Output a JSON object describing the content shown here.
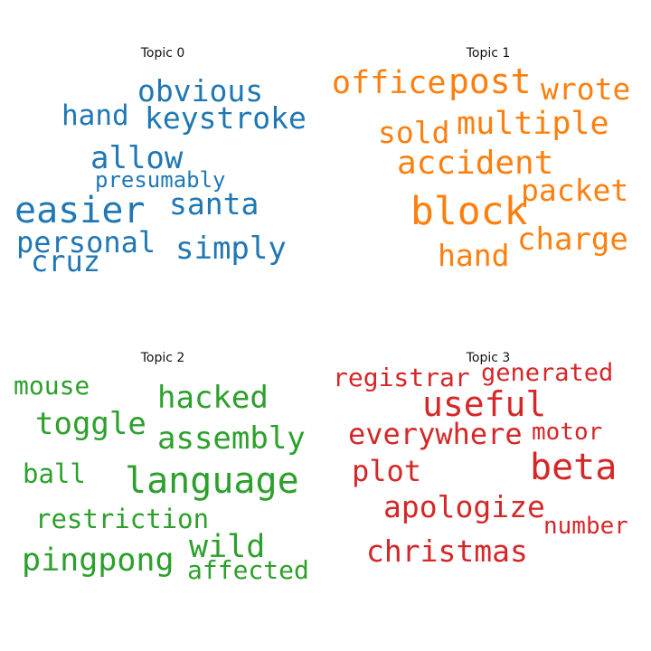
{
  "topics": [
    {
      "title": "Topic 0",
      "color": "#1f77b4",
      "words": [
        "obvious",
        "hand",
        "keystroke",
        "allow",
        "presumably",
        "easier",
        "santa",
        "personal",
        "simply",
        "cruz"
      ]
    },
    {
      "title": "Topic 1",
      "color": "#ff7f0e",
      "words": [
        "office",
        "post",
        "wrote",
        "sold",
        "multiple",
        "accident",
        "packet",
        "block",
        "charge",
        "hand"
      ]
    },
    {
      "title": "Topic 2",
      "color": "#2ca02c",
      "words": [
        "mouse",
        "hacked",
        "toggle",
        "assembly",
        "ball",
        "language",
        "restriction",
        "wild",
        "pingpong",
        "affected"
      ]
    },
    {
      "title": "Topic 3",
      "color": "#d62728",
      "words": [
        "registrar",
        "generated",
        "useful",
        "everywhere",
        "motor",
        "plot",
        "beta",
        "apologize",
        "number",
        "christmas"
      ]
    }
  ]
}
